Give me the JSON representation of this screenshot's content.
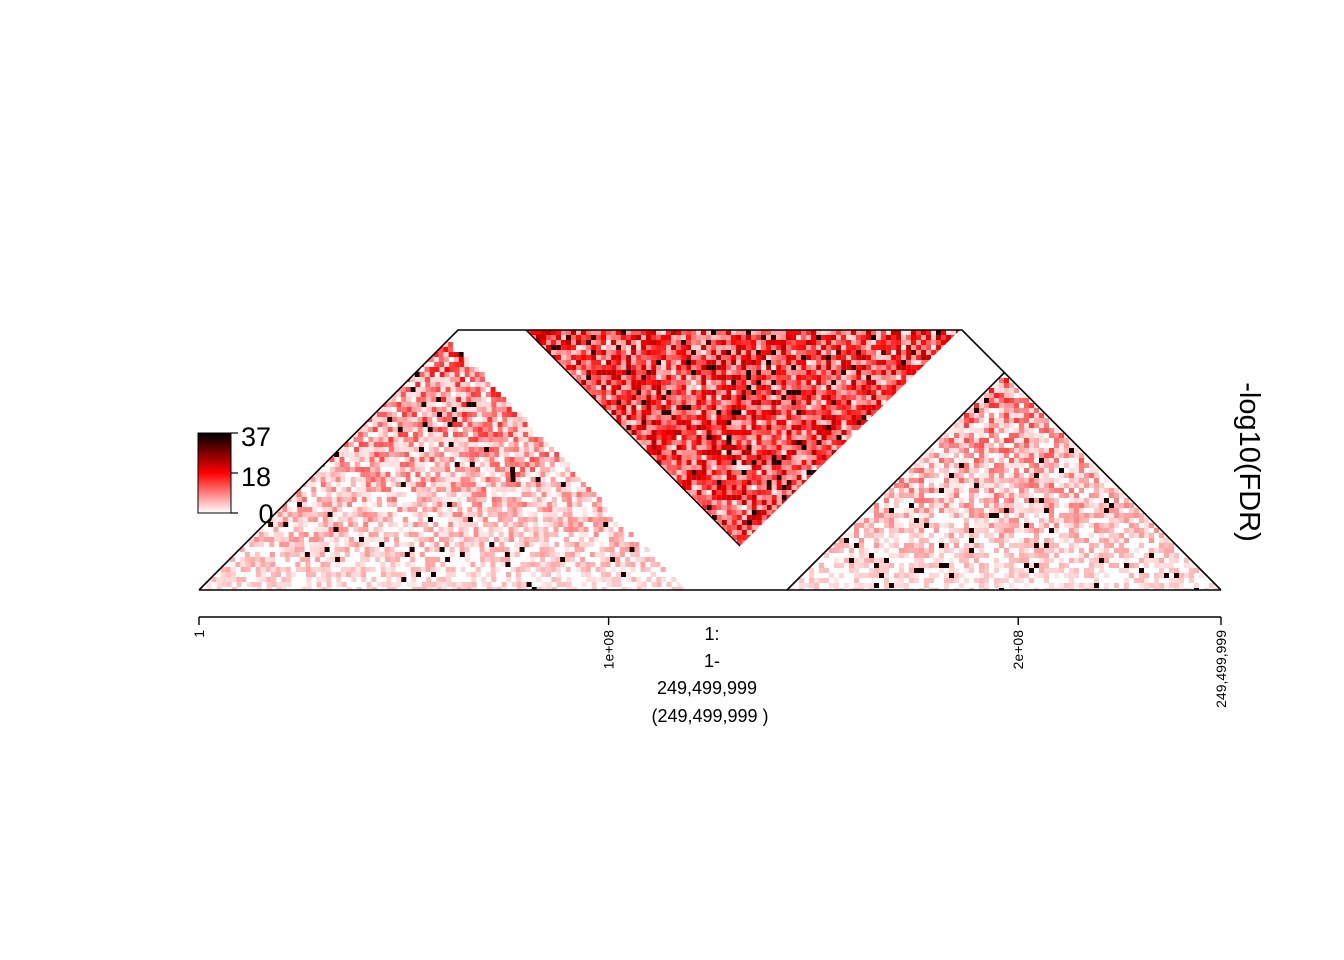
{
  "chart_data": {
    "type": "heatmap",
    "title": "",
    "value_label": "-log10(FDR)",
    "color_scale": {
      "low": "#ffffff",
      "mid": "#ff0000",
      "high": "#000000",
      "min": 0,
      "max": 37,
      "ticks": [
        "37",
        "18",
        "0"
      ]
    },
    "x_axis": {
      "range": [
        1,
        249499999
      ],
      "tick_values": [
        1,
        100000000,
        200000000,
        249499999
      ],
      "tick_labels": [
        "1",
        "1e+08",
        "2e+08",
        "249,499,999"
      ],
      "region_label": [
        "1:",
        "1-",
        "249,499,999",
        "(249,499,999 )"
      ]
    },
    "regions": [
      {
        "shape": "lower-triangle",
        "start": 1,
        "end": 125000000,
        "density": "moderate"
      },
      {
        "shape": "inverted-triangle",
        "start": 80000000,
        "end": 205000000,
        "density": "high"
      },
      {
        "shape": "lower-triangle",
        "start": 143500000,
        "end": 249499999,
        "density": "moderate"
      }
    ],
    "grid": false,
    "legend": "left"
  }
}
